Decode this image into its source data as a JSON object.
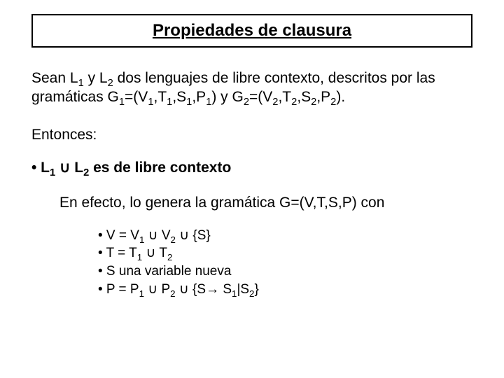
{
  "title": "Propiedades de clausura",
  "para1_parts": {
    "a": "Sean L",
    "b": " y L",
    "c": " dos lenguajes de libre contexto, descritos por las gramáticas G",
    "d": "=(V",
    "e": ",T",
    "f": ",S",
    "g": ",P",
    "h": ") y G",
    "i": "=(V",
    "j": ",T",
    "k": ",S",
    "l": ",P",
    "m": ")."
  },
  "para2": "Entonces:",
  "main_bullet": {
    "prefix": "• L",
    "mid": " ",
    "union": "∪",
    "mid2": " L",
    "suffix": " es de libre contexto"
  },
  "para3": "En efecto, lo genera la gramática G=(V,T,S,P) con",
  "subs": {
    "v": {
      "a": "• V = V",
      "b": " ",
      "u1": "∪",
      "c": " V",
      "d": " ",
      "u2": "∪",
      "e": " {S}"
    },
    "t": {
      "a": "• T = T",
      "b": " ",
      "u1": "∪",
      "c": " T"
    },
    "s": "• S una variable nueva",
    "p": {
      "a": "• P = P",
      "b": " ",
      "u1": "∪",
      "c": " P",
      "d": " ",
      "u2": "∪",
      "e": " {S",
      "arrow": "→",
      "f": " S",
      "g": "|S",
      "h": "}"
    }
  },
  "subscripts": {
    "one": "1",
    "two": "2"
  }
}
